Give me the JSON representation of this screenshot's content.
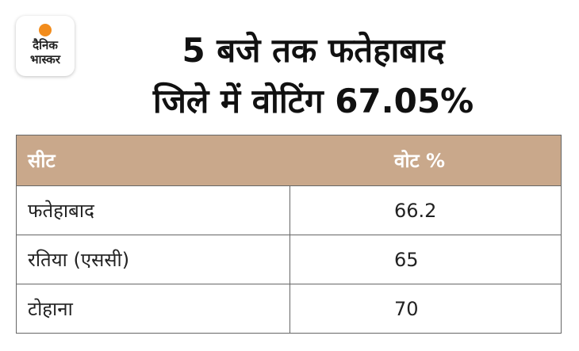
{
  "logo": {
    "lines": [
      "दैनिक",
      "भास्कर"
    ]
  },
  "header": {
    "title_lines": [
      "5 बजे तक फतेहाबाद",
      "जिले में वोटिंग 67.05%"
    ]
  },
  "table": {
    "columns": [
      "सीट",
      "वोट %"
    ],
    "rows": [
      [
        "फतेहाबाद",
        66.2
      ],
      [
        "रतिया (एससी)",
        65
      ],
      [
        "टोहाना",
        70
      ]
    ]
  }
}
